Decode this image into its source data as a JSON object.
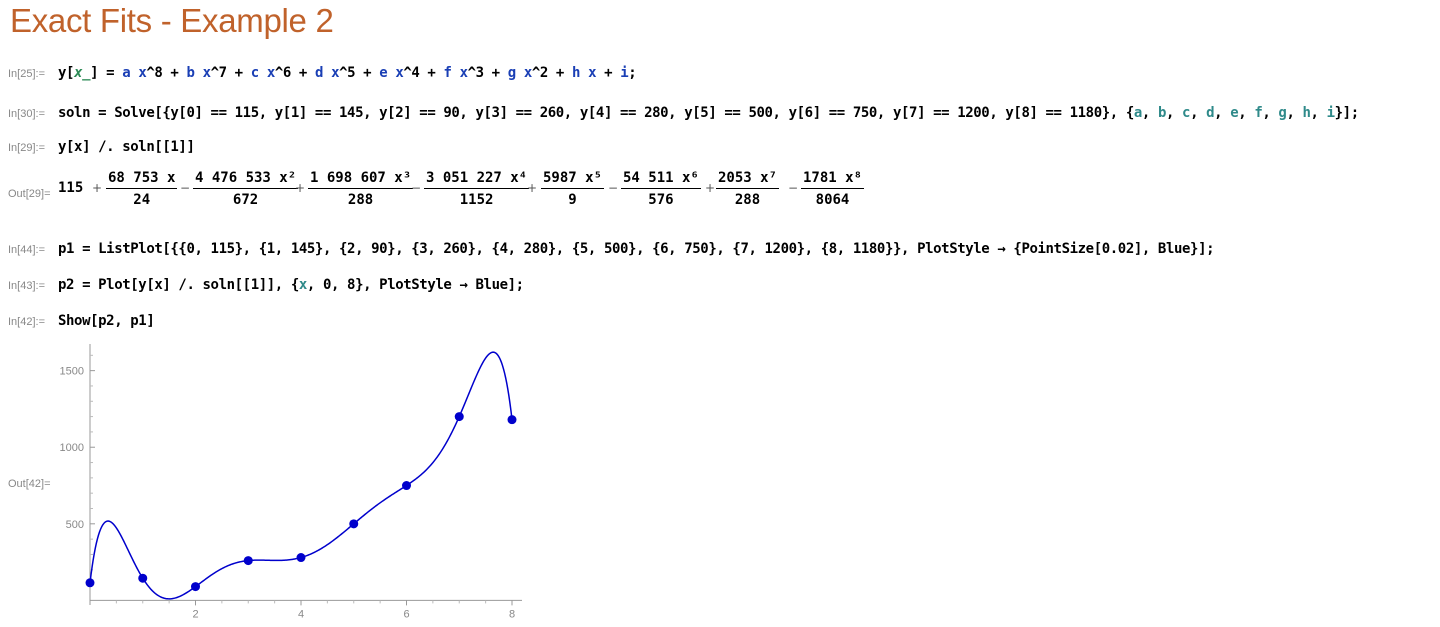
{
  "title": "Exact Fits - Example 2",
  "cells": {
    "in25": {
      "label": "In[25]:="
    },
    "in30": {
      "label": "In[30]:="
    },
    "in29": {
      "label": "In[29]:="
    },
    "out29": {
      "label": "Out[29]="
    },
    "in44": {
      "label": "In[44]:="
    },
    "in43": {
      "label": "In[43]:="
    },
    "in42": {
      "label": "In[42]:="
    },
    "out42": {
      "label": "Out[42]="
    }
  },
  "output29": {
    "lead": "115",
    "terms": [
      {
        "sign": "+",
        "num": "68 753 x",
        "den": "24"
      },
      {
        "sign": "−",
        "num": "4 476 533 x²",
        "den": "672"
      },
      {
        "sign": "+",
        "num": "1 698 607 x³",
        "den": "288"
      },
      {
        "sign": "−",
        "num": "3 051 227 x⁴",
        "den": "1152"
      },
      {
        "sign": "+",
        "num": "5987 x⁵",
        "den": "9"
      },
      {
        "sign": "−",
        "num": "54 511 x⁶",
        "den": "576"
      },
      {
        "sign": "+",
        "num": "2053 x⁷",
        "den": "288"
      },
      {
        "sign": "−",
        "num": "1781 x⁸",
        "den": "8064"
      }
    ]
  },
  "chart_data": {
    "type": "scatter",
    "x": [
      0,
      1,
      2,
      3,
      4,
      5,
      6,
      7,
      8
    ],
    "y": [
      115,
      145,
      90,
      260,
      280,
      500,
      750,
      1200,
      1180
    ],
    "curve_coefficients": {
      "a": -0.220858,
      "b": 7.128472,
      "c": -94.637153,
      "d": 665.222222,
      "e": -2648.634549,
      "f": 5897.940972,
      "g": -6661.50744,
      "h": 2864.708333,
      "i": 115
    },
    "xlim": [
      0,
      8
    ],
    "ylim": [
      -30,
      1700
    ],
    "xticks": [
      2,
      4,
      6,
      8
    ],
    "yticks": [
      500,
      1000,
      1500
    ],
    "color": "#0000cc",
    "grid": false
  }
}
